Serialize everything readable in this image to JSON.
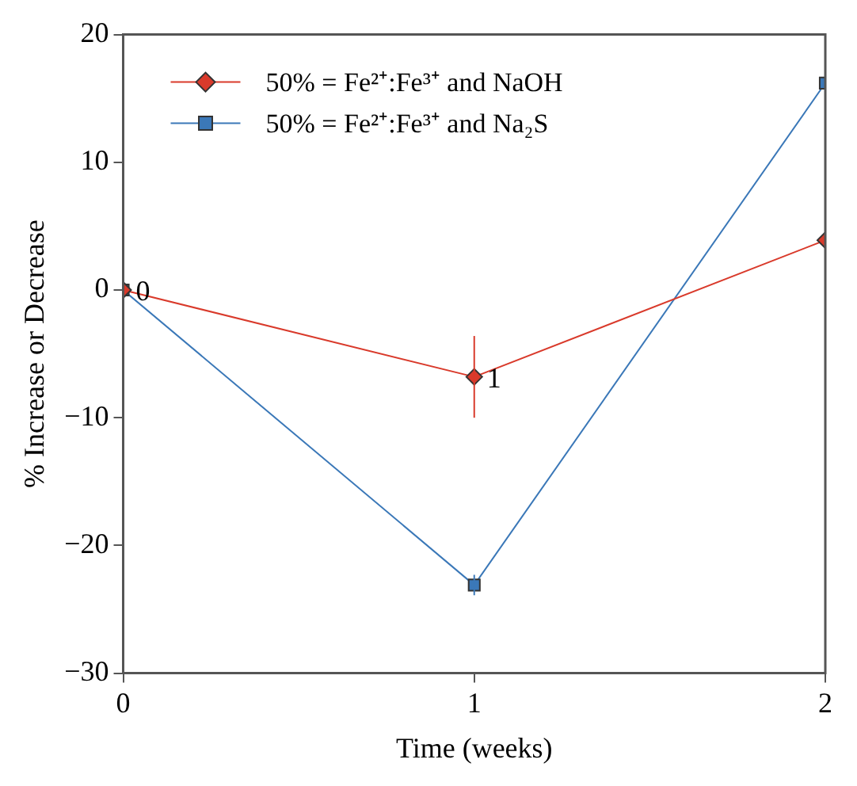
{
  "chart_data": {
    "type": "line",
    "xlabel": "Time (weeks)",
    "ylabel": "% Increase or Decrease",
    "x": [
      0,
      1,
      2
    ],
    "series": [
      {
        "name": "50% = Fe²⁺:Fe³⁺ and NaOH",
        "color": "#d93a2b",
        "marker": "diamond",
        "values": [
          0,
          -6.8,
          3.9
        ],
        "errors": [
          null,
          3.2,
          null
        ]
      },
      {
        "name": "50% = Fe²⁺:Fe³⁺ and Na₂S",
        "color": "#3b78b8",
        "marker": "square",
        "values": [
          0,
          -23.1,
          16.2
        ],
        "errors": [
          null,
          0.8,
          null
        ]
      }
    ],
    "annotations": [
      {
        "text": "0",
        "x": 0,
        "y": 0
      },
      {
        "text": "1",
        "x": 1,
        "y": -6.8
      }
    ],
    "xlim": [
      0,
      2
    ],
    "xticks": [
      0,
      1,
      2
    ],
    "ylim": [
      -30,
      20
    ],
    "yticks": [
      -30,
      -20,
      -10,
      0,
      10,
      20
    ],
    "grid": false,
    "legend": "top left",
    "line_style": "solid"
  }
}
